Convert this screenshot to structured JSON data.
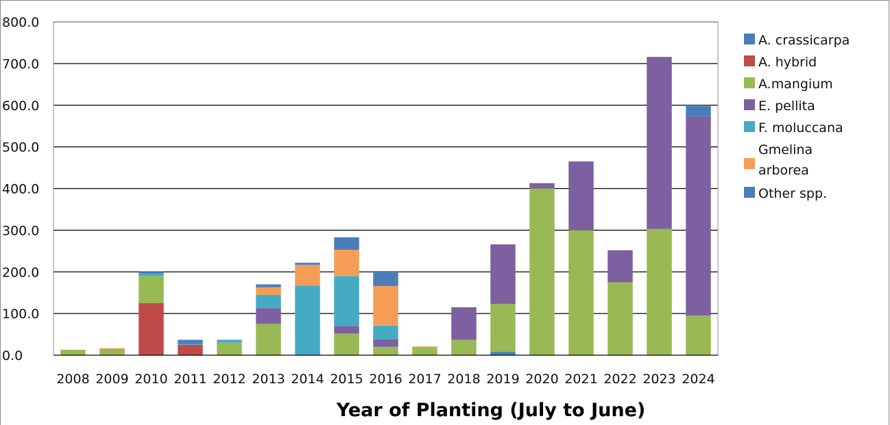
{
  "chart_data": {
    "type": "bar",
    "stacked": true,
    "title": "",
    "xlabel": "Year of Planting (July to June)",
    "ylabel": "",
    "ylim": [
      0,
      800
    ],
    "y_ticks": [
      "0.0",
      "100.0",
      "200.0",
      "300.0",
      "400.0",
      "500.0",
      "600.0",
      "700.0",
      "800.0"
    ],
    "grid": true,
    "legend_position": "right",
    "categories": [
      "2008",
      "2009",
      "2010",
      "2011",
      "2012",
      "2013",
      "2014",
      "2015",
      "2016",
      "2017",
      "2018",
      "2019",
      "2020",
      "2021",
      "2022",
      "2023",
      "2024"
    ],
    "series": [
      {
        "name": "A. crassicarpa",
        "color": "#4a7ebb",
        "values": [
          0,
          0,
          0,
          0,
          0,
          0,
          0,
          0,
          0,
          0,
          0,
          8,
          0,
          0,
          0,
          0,
          0
        ]
      },
      {
        "name": "A. hybrid",
        "color": "#be4b48",
        "values": [
          0,
          0,
          125,
          25,
          0,
          0,
          0,
          0,
          0,
          0,
          0,
          0,
          0,
          0,
          0,
          0,
          0
        ]
      },
      {
        "name": "A.mangium",
        "color": "#98b954",
        "values": [
          13,
          15,
          65,
          0,
          30,
          75,
          0,
          52,
          20,
          18,
          37,
          115,
          400,
          300,
          175,
          303,
          95
        ]
      },
      {
        "name": "E. pellita",
        "color": "#7d60a0",
        "values": [
          0,
          0,
          0,
          0,
          0,
          38,
          0,
          18,
          18,
          0,
          78,
          143,
          13,
          165,
          77,
          413,
          478
        ]
      },
      {
        "name": "F. moluccana",
        "color": "#46aac5",
        "values": [
          0,
          0,
          6,
          2,
          6,
          32,
          167,
          120,
          33,
          0,
          0,
          0,
          0,
          0,
          0,
          0,
          0
        ]
      },
      {
        "name": "Gmelina arborea",
        "color": "#f59d56",
        "values": [
          0,
          2,
          0,
          0,
          0,
          18,
          50,
          63,
          95,
          3,
          0,
          0,
          0,
          0,
          0,
          0,
          0
        ]
      },
      {
        "name": "Other spp.",
        "color": "#4a7ebb",
        "values": [
          0,
          0,
          4,
          10,
          1,
          7,
          5,
          30,
          36,
          0,
          0,
          0,
          0,
          0,
          0,
          0,
          25
        ]
      }
    ]
  }
}
